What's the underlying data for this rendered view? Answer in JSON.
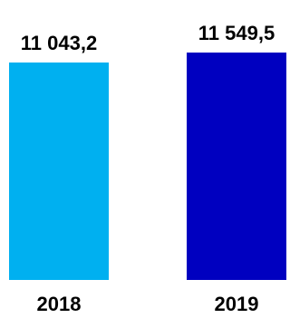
{
  "chart_data": {
    "type": "bar",
    "categories": [
      "2018",
      "2019"
    ],
    "values": [
      11043.2,
      11549.5
    ],
    "value_labels": [
      "11 043,2",
      "11 549,5"
    ],
    "colors": [
      "#00b0f0",
      "#0000c0"
    ],
    "grid": false,
    "legend": "none"
  }
}
